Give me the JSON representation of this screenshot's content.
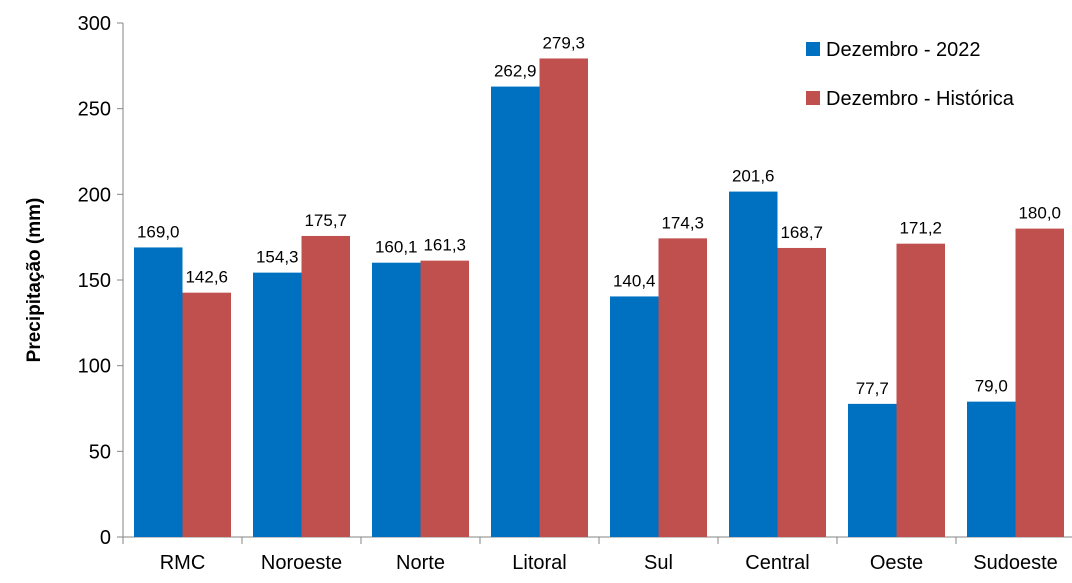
{
  "chart_data": {
    "type": "bar",
    "categories": [
      "RMC",
      "Noroeste",
      "Norte",
      "Litoral",
      "Sul",
      "Central",
      "Oeste",
      "Sudoeste"
    ],
    "series": [
      {
        "name": "Dezembro - 2022",
        "color": "#0070C0",
        "values": [
          169.0,
          154.3,
          160.1,
          262.9,
          140.4,
          201.6,
          77.7,
          79.0
        ],
        "labels": [
          "169,0",
          "154,3",
          "160,1",
          "262,9",
          "140,4",
          "201,6",
          "77,7",
          "79,0"
        ]
      },
      {
        "name": "Dezembro - Histórica",
        "color": "#C0504D",
        "values": [
          142.6,
          175.7,
          161.3,
          279.3,
          174.3,
          168.7,
          171.2,
          180.0
        ],
        "labels": [
          "142,6",
          "175,7",
          "161,3",
          "279,3",
          "174,3",
          "168,7",
          "171,2",
          "180,0"
        ]
      }
    ],
    "ylabel": "Precipitação (mm)",
    "xlabel": "",
    "ylim": [
      0,
      300
    ],
    "yticks": [
      0,
      50,
      100,
      150,
      200,
      250,
      300
    ],
    "grid": false,
    "legend_position": "top-right"
  }
}
